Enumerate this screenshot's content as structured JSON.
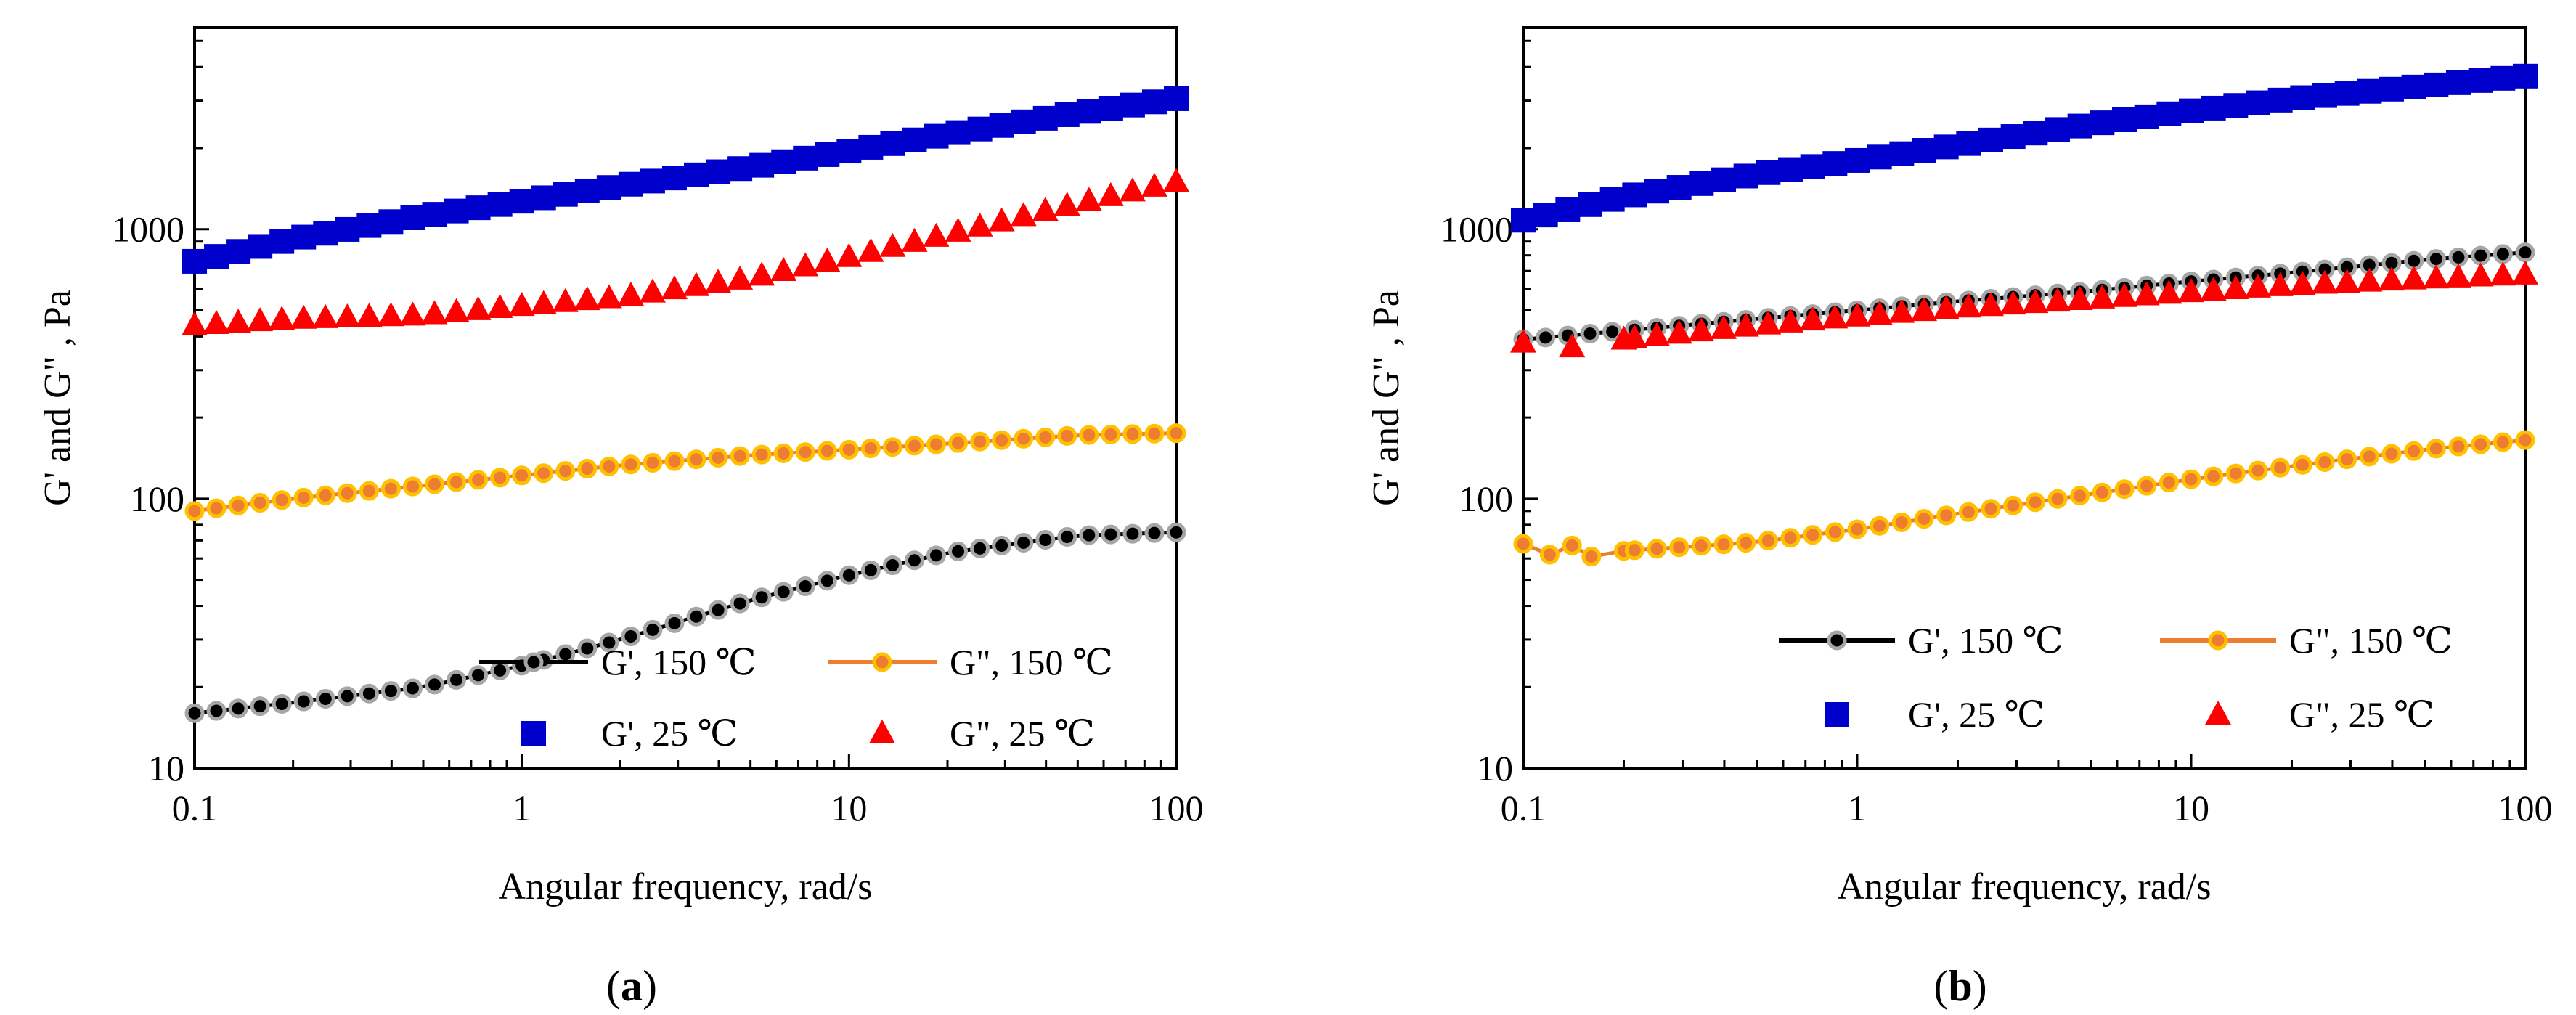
{
  "chart_data": [
    {
      "panel": "a",
      "type": "scatter",
      "caption_letter": "a",
      "xlabel": "Angular frequency, rad/s",
      "ylabel": "G' and G\" , Pa",
      "xscale": "log",
      "yscale": "log",
      "xlim": [
        0.1,
        100
      ],
      "ylim": [
        10,
        5600
      ],
      "xticks": [
        "0.1",
        "1",
        "10",
        "100"
      ],
      "yticks": [
        "10",
        "100",
        "1000"
      ],
      "legend_position": "lower-right",
      "series": [
        {
          "name": "G', 150 °C",
          "label": "G', 150 ℃",
          "marker": "circle-line",
          "line_color": "#000000",
          "marker_fill": "#000000",
          "marker_edge": "#a6a6a6",
          "x": [
            0.1,
            0.2,
            0.5,
            1,
            2,
            5,
            10,
            20,
            50,
            100
          ],
          "y": [
            16,
            17.5,
            20,
            24,
            30,
            42,
            52,
            63,
            73,
            75
          ]
        },
        {
          "name": "G\", 150 °C",
          "label": "G\", 150 ℃",
          "marker": "circle-line",
          "line_color": "#ed7d31",
          "marker_fill": "#ed7d31",
          "marker_edge": "#ffc000",
          "x": [
            0.1,
            0.2,
            0.5,
            1,
            2,
            5,
            10,
            20,
            50,
            100
          ],
          "y": [
            90,
            100,
            112,
            122,
            133,
            145,
            152,
            160,
            172,
            175
          ]
        },
        {
          "name": "G', 25 °C",
          "label": "G', 25 ℃",
          "marker": "square",
          "color": "#0000cc",
          "x": [
            0.1,
            0.2,
            0.5,
            1,
            2,
            5,
            10,
            20,
            50,
            100
          ],
          "y": [
            760,
            920,
            1120,
            1270,
            1450,
            1700,
            1950,
            2250,
            2700,
            3050
          ]
        },
        {
          "name": "G\", 25 °C",
          "label": "G\", 25 ℃",
          "marker": "triangle",
          "color": "#ff0000",
          "x": [
            0.1,
            0.2,
            0.5,
            1,
            2,
            5,
            10,
            20,
            50,
            100
          ],
          "y": [
            440,
            465,
            480,
            520,
            560,
            660,
            790,
            960,
            1250,
            1500
          ]
        }
      ]
    },
    {
      "panel": "b",
      "type": "scatter",
      "caption_letter": "b",
      "xlabel": "Angular frequency, rad/s",
      "ylabel": "G' and G\" , Pa",
      "xscale": "log",
      "yscale": "log",
      "xlim": [
        0.1,
        100
      ],
      "ylim": [
        10,
        5600
      ],
      "xticks": [
        "0.1",
        "1",
        "10",
        "100"
      ],
      "yticks": [
        "10",
        "100",
        "1000"
      ],
      "legend_position": "lower-right",
      "series": [
        {
          "name": "G', 150 °C",
          "label": "G', 150 ℃",
          "marker": "circle-line",
          "line_color": "#000000",
          "marker_fill": "#000000",
          "marker_edge": "#a6a6a6",
          "x": [
            0.1,
            0.2,
            0.5,
            1,
            2,
            5,
            10,
            20,
            50,
            100
          ],
          "y": [
            390,
            420,
            465,
            500,
            540,
            590,
            640,
            690,
            770,
            820
          ]
        },
        {
          "name": "G\", 150 °C",
          "label": "G\", 150 ℃",
          "marker": "circle-line",
          "line_color": "#ed7d31",
          "marker_fill": "#ed7d31",
          "marker_edge": "#ffc000",
          "x": [
            0.1,
            0.12,
            0.14,
            0.16,
            0.2,
            0.5,
            1,
            2,
            5,
            10,
            20,
            50,
            100
          ],
          "y": [
            68,
            62,
            67,
            61,
            64,
            69,
            77,
            88,
            104,
            118,
            132,
            152,
            165
          ]
        },
        {
          "name": "G', 25 °C",
          "label": "G', 25 ℃",
          "marker": "square",
          "color": "#0000cc",
          "x": [
            0.1,
            0.2,
            0.5,
            1,
            2,
            5,
            10,
            20,
            50,
            100
          ],
          "y": [
            1080,
            1320,
            1600,
            1800,
            2050,
            2450,
            2750,
            3050,
            3400,
            3700
          ]
        },
        {
          "name": "G\", 25 °C",
          "label": "G\", 25 ℃",
          "marker": "triangle",
          "color": "#ff0000",
          "x": [
            0.1,
            0.14,
            0.2,
            0.5,
            1,
            2,
            5,
            10,
            20,
            50,
            100
          ],
          "y": [
            380,
            365,
            390,
            440,
            475,
            510,
            550,
            585,
            620,
            655,
            680
          ]
        }
      ]
    }
  ]
}
